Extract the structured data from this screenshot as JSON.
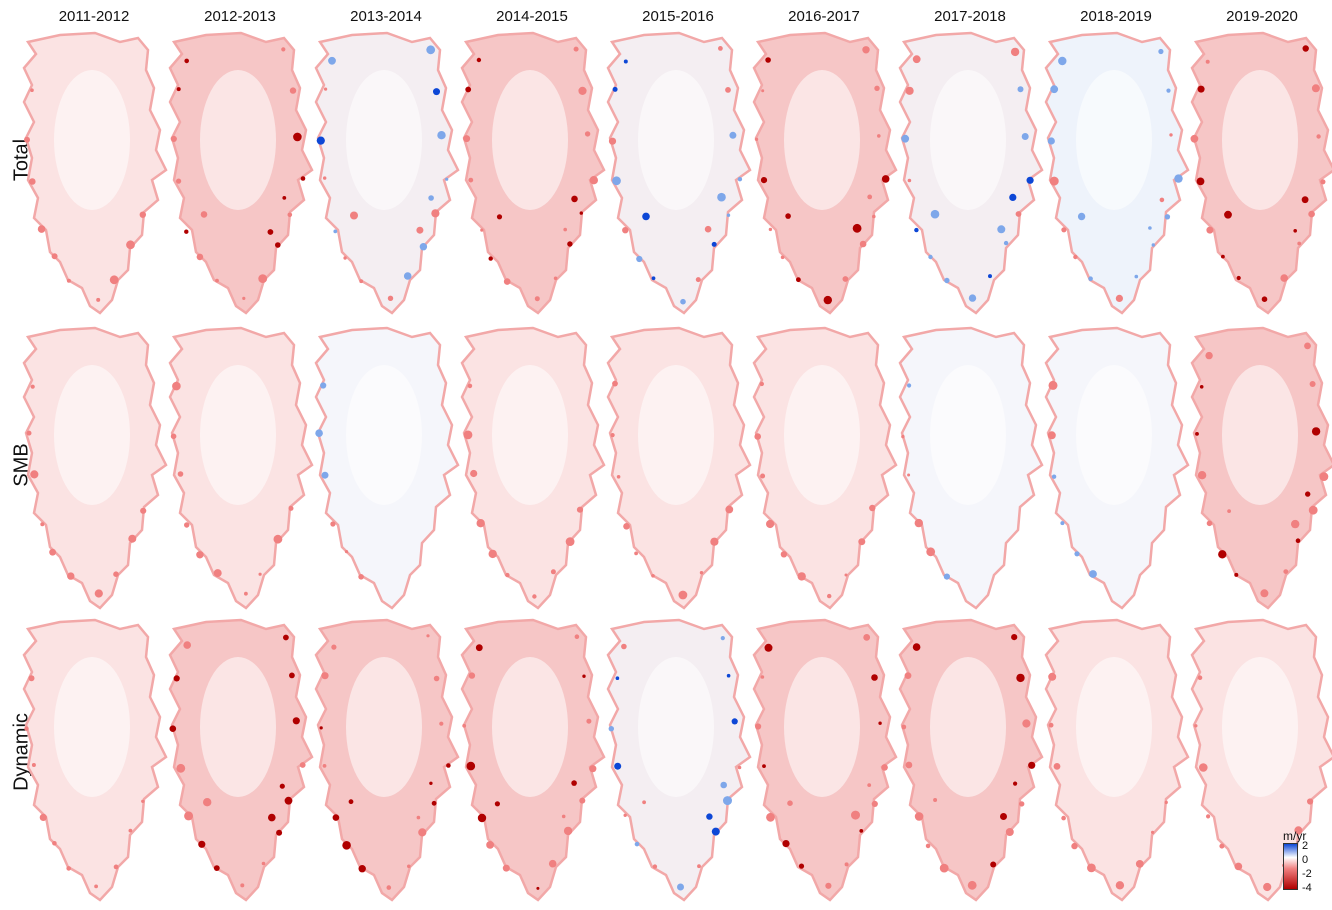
{
  "figure": {
    "columns": [
      "2011-2012",
      "2012-2013",
      "2013-2014",
      "2014-2015",
      "2015-2016",
      "2016-2017",
      "2017-2018",
      "2018-2019",
      "2019-2020"
    ],
    "rows": [
      "Total",
      "SMB",
      "Dynamic"
    ],
    "colorbar": {
      "unit": "m/yr",
      "ticks": [
        "2",
        "0",
        "-2",
        "-4"
      ],
      "colors": {
        "positive": "#0d47d6",
        "zero": "#ffffff",
        "negative": "#b00000",
        "mild_negative": "#f08080"
      }
    },
    "panel_shading": {
      "Total": [
        "light-red",
        "red",
        "mixed",
        "red",
        "mixed",
        "red",
        "mixed",
        "light-blue",
        "red"
      ],
      "SMB": [
        "light-red",
        "light-red",
        "near-zero",
        "light-red",
        "light-red",
        "light-red",
        "near-zero",
        "near-zero",
        "red"
      ],
      "Dynamic": [
        "light-red",
        "red",
        "red",
        "red",
        "mixed",
        "red",
        "red",
        "light-red",
        "light-red"
      ]
    }
  }
}
